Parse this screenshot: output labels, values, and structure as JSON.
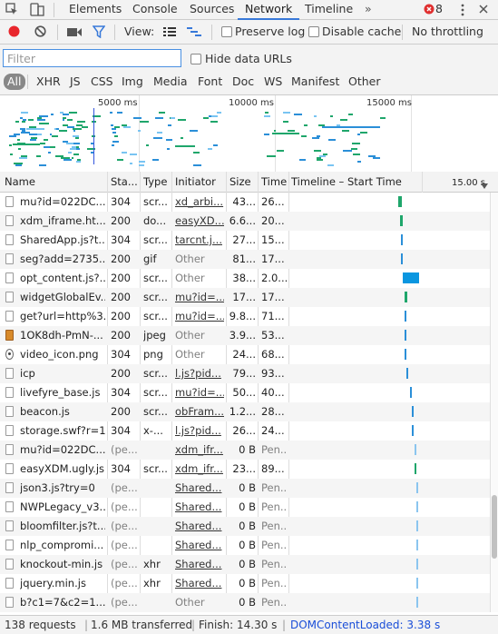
{
  "tabs": [
    {
      "label": "Elements"
    },
    {
      "label": "Console"
    },
    {
      "label": "Sources"
    },
    {
      "label": "Network",
      "selected": true
    },
    {
      "label": "Timeline"
    }
  ],
  "tabs_more": "»",
  "error_count": "8",
  "toolbar": {
    "view_label": "View:",
    "preserve_log": "Preserve log",
    "disable_cache": "Disable cache",
    "throttling": "No throttling"
  },
  "filter": {
    "placeholder": "Filter",
    "hide_data_urls": "Hide data URLs",
    "types": [
      "All",
      "XHR",
      "JS",
      "CSS",
      "Img",
      "Media",
      "Font",
      "Doc",
      "WS",
      "Manifest",
      "Other"
    ]
  },
  "overview": {
    "tick_labels": [
      "5000 ms",
      "10000 ms",
      "15000 ms"
    ]
  },
  "columns": {
    "name": "Name",
    "status": "Sta...",
    "type": "Type",
    "initiator": "Initiator",
    "size": "Size",
    "time": "Time",
    "timeline": "Timeline – Start Time",
    "timeline_tick": "15.00 s"
  },
  "requests": [
    {
      "name": "mu?id=022DC...",
      "status": "304",
      "type": "scr...",
      "initiator": "xd_arbi...",
      "size": "43...",
      "time": "26...",
      "wf": [
        0.488,
        0.01
      ],
      "color": "#1fa66b"
    },
    {
      "name": "xdm_iframe.ht...",
      "status": "200",
      "type": "do...",
      "initiator": "easyXD...",
      "size": "6.6...",
      "time": "20...",
      "wf": [
        0.492,
        0.008
      ],
      "color": "#1fa66b"
    },
    {
      "name": "SharedApp.js?t...",
      "status": "304",
      "type": "scr...",
      "initiator": "tarcnt.j...",
      "size": "27...",
      "time": "15...",
      "wf": [
        0.495,
        0.006
      ],
      "color": "#2b8fd8"
    },
    {
      "name": "seg?add=2735...",
      "status": "200",
      "type": "gif",
      "initiator": "Other",
      "size": "81...",
      "time": "17...",
      "wf": [
        0.495,
        0.006
      ],
      "color": "#2b8fd8"
    },
    {
      "name": "opt_content.js?...",
      "status": "200",
      "type": "scr...",
      "initiator": "Other",
      "size": "38...",
      "time": "2.0...",
      "wf": [
        0.5,
        0.045
      ],
      "color": "#0a96e0"
    },
    {
      "name": "widgetGlobalEv...",
      "status": "200",
      "type": "scr...",
      "initiator": "mu?id=...",
      "size": "17...",
      "time": "17...",
      "wf": [
        0.504,
        0.008
      ],
      "color": "#1fa66b"
    },
    {
      "name": "get?url=http%3...",
      "status": "200",
      "type": "scr...",
      "initiator": "mu?id=...",
      "size": "9.8...",
      "time": "71...",
      "wf": [
        0.505,
        0.006
      ],
      "color": "#2b8fd8"
    },
    {
      "name": "1OK8dh-PmN-...",
      "status": "200",
      "type": "jpeg",
      "initiator": "Other",
      "size": "3.9...",
      "time": "53...",
      "wf": [
        0.505,
        0.005
      ],
      "color": "#2b8fd8"
    },
    {
      "name": "video_icon.png",
      "status": "304",
      "type": "png",
      "initiator": "Other",
      "size": "24...",
      "time": "68...",
      "wf": [
        0.505,
        0.005
      ],
      "color": "#2b8fd8"
    },
    {
      "name": "icp",
      "status": "200",
      "type": "scr...",
      "initiator": "l.js?pid...",
      "size": "79...",
      "time": "93...",
      "wf": [
        0.509,
        0.006
      ],
      "color": "#2b8fd8"
    },
    {
      "name": "livefyre_base.js",
      "status": "304",
      "type": "scr...",
      "initiator": "mu?id=...",
      "size": "50...",
      "time": "40...",
      "wf": [
        0.52,
        0.004
      ],
      "color": "#2b8fd8"
    },
    {
      "name": "beacon.js",
      "status": "200",
      "type": "scr...",
      "initiator": "obFram...",
      "size": "1.2...",
      "time": "28...",
      "wf": [
        0.524,
        0.004
      ],
      "color": "#2b8fd8"
    },
    {
      "name": "storage.swf?r=1",
      "status": "304",
      "type": "x-...",
      "initiator": "l.js?pid...",
      "size": "26...",
      "time": "24...",
      "wf": [
        0.525,
        0.005
      ],
      "color": "#2b8fd8"
    },
    {
      "name": "mu?id=022DC...",
      "status": "(pe...",
      "type": "",
      "initiator": "xdm_ifr...",
      "size": "0 B",
      "time": "Pen...",
      "wf": [
        0.532,
        0.002
      ],
      "color": "#8bc5ef"
    },
    {
      "name": "easyXDM.ugly.js",
      "status": "304",
      "type": "scr...",
      "initiator": "xdm_ifr...",
      "size": "23...",
      "time": "89...",
      "wf": [
        0.533,
        0.004
      ],
      "color": "#1fa66b"
    },
    {
      "name": "json3.js?try=0",
      "status": "(pe...",
      "type": "",
      "initiator": "Shared...",
      "size": "0 B",
      "time": "Pen...",
      "wf": [
        0.537,
        0.001
      ],
      "color": "#8bc5ef"
    },
    {
      "name": "NWPLegacy_v3...",
      "status": "(pe...",
      "type": "",
      "initiator": "Shared...",
      "size": "0 B",
      "time": "Pen...",
      "wf": [
        0.537,
        0.001
      ],
      "color": "#8bc5ef"
    },
    {
      "name": "bloomfilter.js?t...",
      "status": "(pe...",
      "type": "",
      "initiator": "Shared...",
      "size": "0 B",
      "time": "Pen...",
      "wf": [
        0.537,
        0.001
      ],
      "color": "#8bc5ef"
    },
    {
      "name": "nlp_compromi...",
      "status": "(pe...",
      "type": "",
      "initiator": "Shared...",
      "size": "0 B",
      "time": "Pen...",
      "wf": [
        0.537,
        0.001
      ],
      "color": "#8bc5ef"
    },
    {
      "name": "knockout-min.js",
      "status": "(pe...",
      "type": "xhr",
      "initiator": "Shared...",
      "size": "0 B",
      "time": "Pen...",
      "wf": [
        0.537,
        0.001
      ],
      "color": "#8bc5ef"
    },
    {
      "name": "jquery.min.js",
      "status": "(pe...",
      "type": "xhr",
      "initiator": "Shared...",
      "size": "0 B",
      "time": "Pen...",
      "wf": [
        0.537,
        0.001
      ],
      "color": "#8bc5ef"
    },
    {
      "name": "b?c1=7&c2=1...",
      "status": "(pe...",
      "type": "",
      "initiator": "Other",
      "size": "0 B",
      "time": "Pen...",
      "wf": [
        0.537,
        0.001
      ],
      "color": "#8bc5ef"
    }
  ],
  "status": {
    "requests": "138 requests",
    "transferred": "1.6 MB transferred",
    "finish": "Finish: 14.30 s",
    "dcl": "DOMContentLoaded: 3.38 s",
    "dcl_color": "#1a4ed8"
  },
  "scroll_fraction": 0.85
}
